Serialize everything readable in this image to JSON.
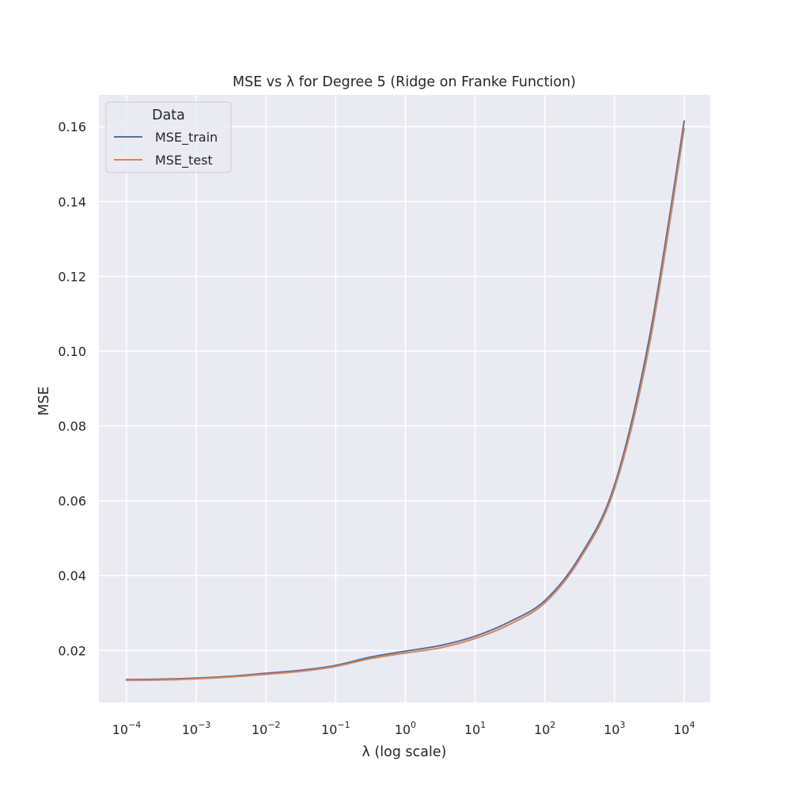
{
  "chart_data": {
    "type": "line",
    "title": "MSE vs λ for Degree 5 (Ridge on Franke Function)",
    "xlabel": "λ (log scale)",
    "ylabel": "MSE",
    "xscale": "log",
    "xlim": [
      0.0001,
      10000
    ],
    "ylim": [
      0.0061,
      0.1685
    ],
    "grid": true,
    "x_ticks": [
      {
        "value": 0.0001,
        "base": "10",
        "exp": "−4"
      },
      {
        "value": 0.001,
        "base": "10",
        "exp": "−3"
      },
      {
        "value": 0.01,
        "base": "10",
        "exp": "−2"
      },
      {
        "value": 0.1,
        "base": "10",
        "exp": "−1"
      },
      {
        "value": 1,
        "base": "10",
        "exp": "0"
      },
      {
        "value": 10,
        "base": "10",
        "exp": "1"
      },
      {
        "value": 100,
        "base": "10",
        "exp": "2"
      },
      {
        "value": 1000,
        "base": "10",
        "exp": "3"
      },
      {
        "value": 10000,
        "base": "10",
        "exp": "4"
      }
    ],
    "y_ticks": [
      {
        "value": 0.02,
        "label": "0.02"
      },
      {
        "value": 0.04,
        "label": "0.04"
      },
      {
        "value": 0.06,
        "label": "0.06"
      },
      {
        "value": 0.08,
        "label": "0.08"
      },
      {
        "value": 0.1,
        "label": "0.10"
      },
      {
        "value": 0.12,
        "label": "0.12"
      },
      {
        "value": 0.14,
        "label": "0.14"
      },
      {
        "value": 0.16,
        "label": "0.16"
      }
    ],
    "legend": {
      "title": "Data",
      "position": "top-left"
    },
    "x": [
      0.0001,
      0.000316,
      0.001,
      0.00316,
      0.01,
      0.0316,
      0.1,
      0.316,
      1,
      3.16,
      10,
      31.6,
      100,
      316,
      1000,
      3160,
      10000
    ],
    "series": [
      {
        "name": "MSE_train",
        "color": "#4c72b0",
        "values": [
          0.0122,
          0.0123,
          0.0126,
          0.0131,
          0.0139,
          0.0147,
          0.016,
          0.0182,
          0.0198,
          0.0213,
          0.0238,
          0.0277,
          0.0333,
          0.045,
          0.0642,
          0.1035,
          0.1615
        ]
      },
      {
        "name": "MSE_test",
        "color": "#dd8452",
        "values": [
          0.012,
          0.0121,
          0.0124,
          0.0129,
          0.0136,
          0.0144,
          0.0157,
          0.0178,
          0.0193,
          0.0207,
          0.0232,
          0.027,
          0.0327,
          0.0443,
          0.0632,
          0.1015,
          0.1595
        ]
      }
    ]
  }
}
